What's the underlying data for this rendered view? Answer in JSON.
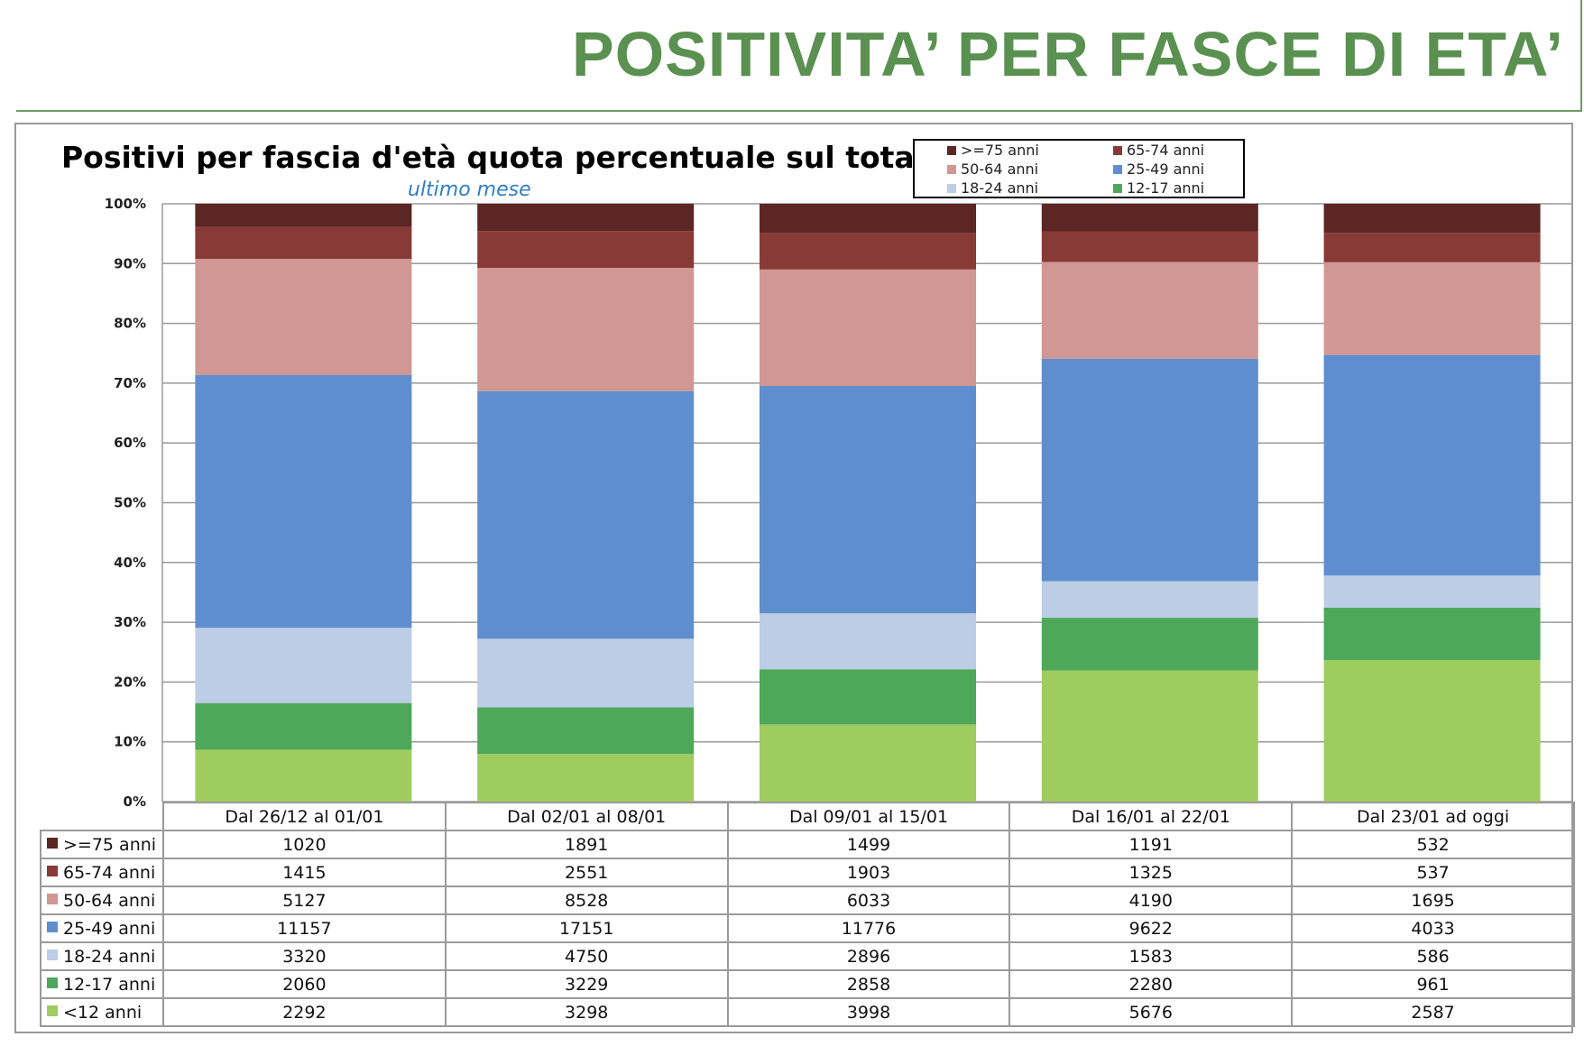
{
  "slide_title": "POSITIVITA’ PER FASCE DI ETA’",
  "chart_data": {
    "type": "bar",
    "stacked": true,
    "normalized": true,
    "title": "Positivi per fascia d'età quota percentuale sul totale",
    "subtitle": "ultimo mese",
    "xlabel": "",
    "ylabel": "",
    "ylim": [
      0,
      100
    ],
    "y_ticks": [
      "0%",
      "10%",
      "20%",
      "30%",
      "40%",
      "50%",
      "60%",
      "70%",
      "80%",
      "90%",
      "100%"
    ],
    "grid": true,
    "legend_position": "top-right",
    "categories": [
      "Dal 26/12 al 01/01",
      "Dal 02/01 al 08/01",
      "Dal 09/01 al 15/01",
      "Dal 16/01 al 22/01",
      "Dal 23/01 ad oggi"
    ],
    "series": [
      {
        "name": ">=75 anni",
        "color": "#5b2624",
        "values": [
          1020,
          1891,
          1499,
          1191,
          532
        ]
      },
      {
        "name": "65-74 anni",
        "color": "#883a36",
        "values": [
          1415,
          2551,
          1903,
          1325,
          537
        ]
      },
      {
        "name": "50-64 anni",
        "color": "#d09794",
        "values": [
          5127,
          8528,
          6033,
          4190,
          1695
        ]
      },
      {
        "name": "25-49 anni",
        "color": "#5f8ecf",
        "values": [
          11157,
          17151,
          11776,
          9622,
          4033
        ]
      },
      {
        "name": "18-24 anni",
        "color": "#bccde5",
        "values": [
          3320,
          4750,
          2896,
          1583,
          586
        ]
      },
      {
        "name": "12-17 anni",
        "color": "#4ea85a",
        "values": [
          2060,
          3229,
          2858,
          2280,
          961
        ]
      },
      {
        "name": "<12 anni",
        "color": "#9fcc5f",
        "values": [
          2292,
          3298,
          3998,
          5676,
          2587
        ]
      }
    ]
  }
}
